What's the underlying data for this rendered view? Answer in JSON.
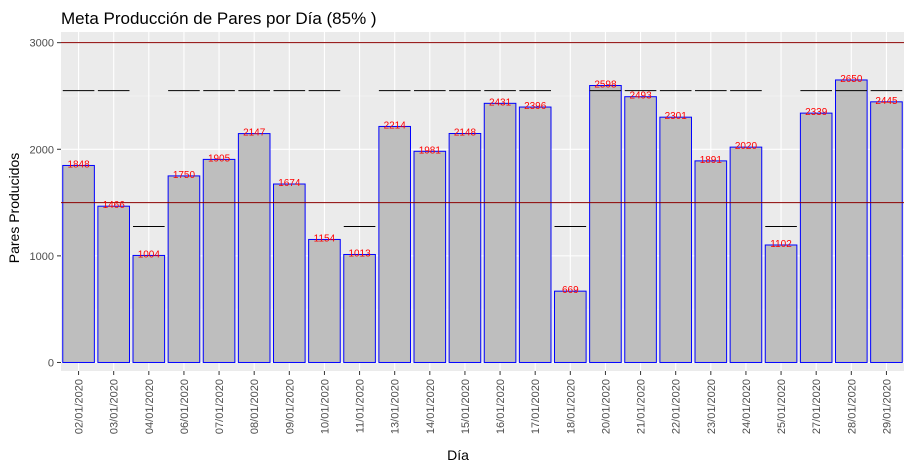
{
  "chart_data": {
    "type": "bar",
    "title": "Meta Producción de Pares por Día (85% )",
    "xlabel": "Día",
    "ylabel": "Pares Producidos",
    "categories": [
      "02/01/2020",
      "03/01/2020",
      "04/01/2020",
      "06/01/2020",
      "07/01/2020",
      "08/01/2020",
      "09/01/2020",
      "10/01/2020",
      "11/01/2020",
      "13/01/2020",
      "14/01/2020",
      "15/01/2020",
      "16/01/2020",
      "17/01/2020",
      "18/01/2020",
      "20/01/2020",
      "21/01/2020",
      "22/01/2020",
      "23/01/2020",
      "24/01/2020",
      "25/01/2020",
      "27/01/2020",
      "28/01/2020",
      "29/01/2020"
    ],
    "values": [
      1848,
      1466,
      1004,
      1750,
      1905,
      2147,
      1674,
      1154,
      1013,
      2214,
      1981,
      2148,
      2431,
      2396,
      669,
      2598,
      2493,
      2301,
      1891,
      2020,
      1102,
      2339,
      2650,
      2445
    ],
    "value_labels": [
      "1848",
      "1466",
      "1004",
      "1750",
      "1905",
      "2147",
      "1674",
      "1154",
      "1013",
      "2214",
      "1981",
      "2148",
      "2431",
      "2396",
      "669",
      "2598",
      "2493",
      "2301",
      "1891",
      "2020",
      "1102",
      "2339",
      "2650",
      "2445"
    ],
    "targets": [
      2550,
      2550,
      1275,
      2550,
      2550,
      2550,
      2550,
      2550,
      1275,
      2550,
      2550,
      2550,
      2550,
      2550,
      1275,
      2550,
      2550,
      2550,
      2550,
      2550,
      1275,
      2550,
      2550,
      2550
    ],
    "hlines": [
      3000,
      1500
    ],
    "ylim": [
      -80,
      3100
    ],
    "yticks": [
      0,
      1000,
      2000,
      3000
    ],
    "ytick_labels": [
      "0",
      "1000",
      "2000",
      "3000"
    ],
    "grid": true,
    "colors": {
      "panel": "#ebebeb",
      "grid_major": "#ffffff",
      "grid_minor": "#f5f5f5",
      "bar_fill": "#bebebe",
      "bar_stroke": "#0000ff",
      "label": "#ff0000",
      "hline": "#8b0000",
      "target": "#000000",
      "tick": "#4d4d4d"
    }
  }
}
